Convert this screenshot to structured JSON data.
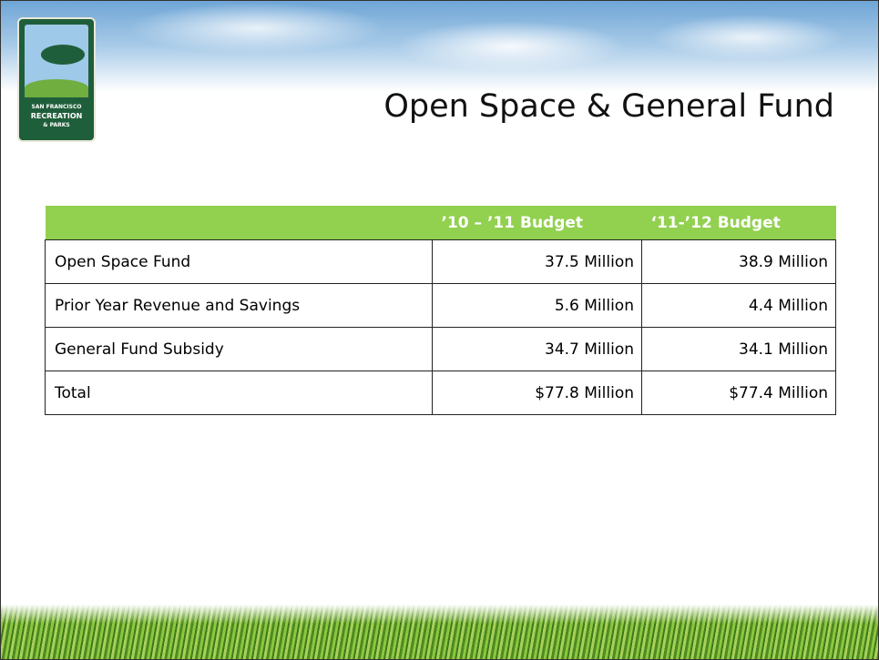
{
  "logo": {
    "lines": [
      "SAN FRANCISCO",
      "RECREATION",
      "& PARKS"
    ]
  },
  "title": "Open Space & General Fund",
  "table": {
    "header": [
      "’10 – ’11  Budget",
      "‘11-’12 Budget"
    ],
    "rows": [
      [
        "Open Space Fund",
        "37.5 Million",
        "38.9 Million"
      ],
      [
        "Prior Year Revenue and Savings",
        "5.6 Million",
        "4.4 Million"
      ],
      [
        "General Fund Subsidy",
        "34.7 Million",
        "34.1 Million"
      ],
      [
        "Total",
        "$77.8 Million",
        "$77.4 Million"
      ]
    ]
  }
}
